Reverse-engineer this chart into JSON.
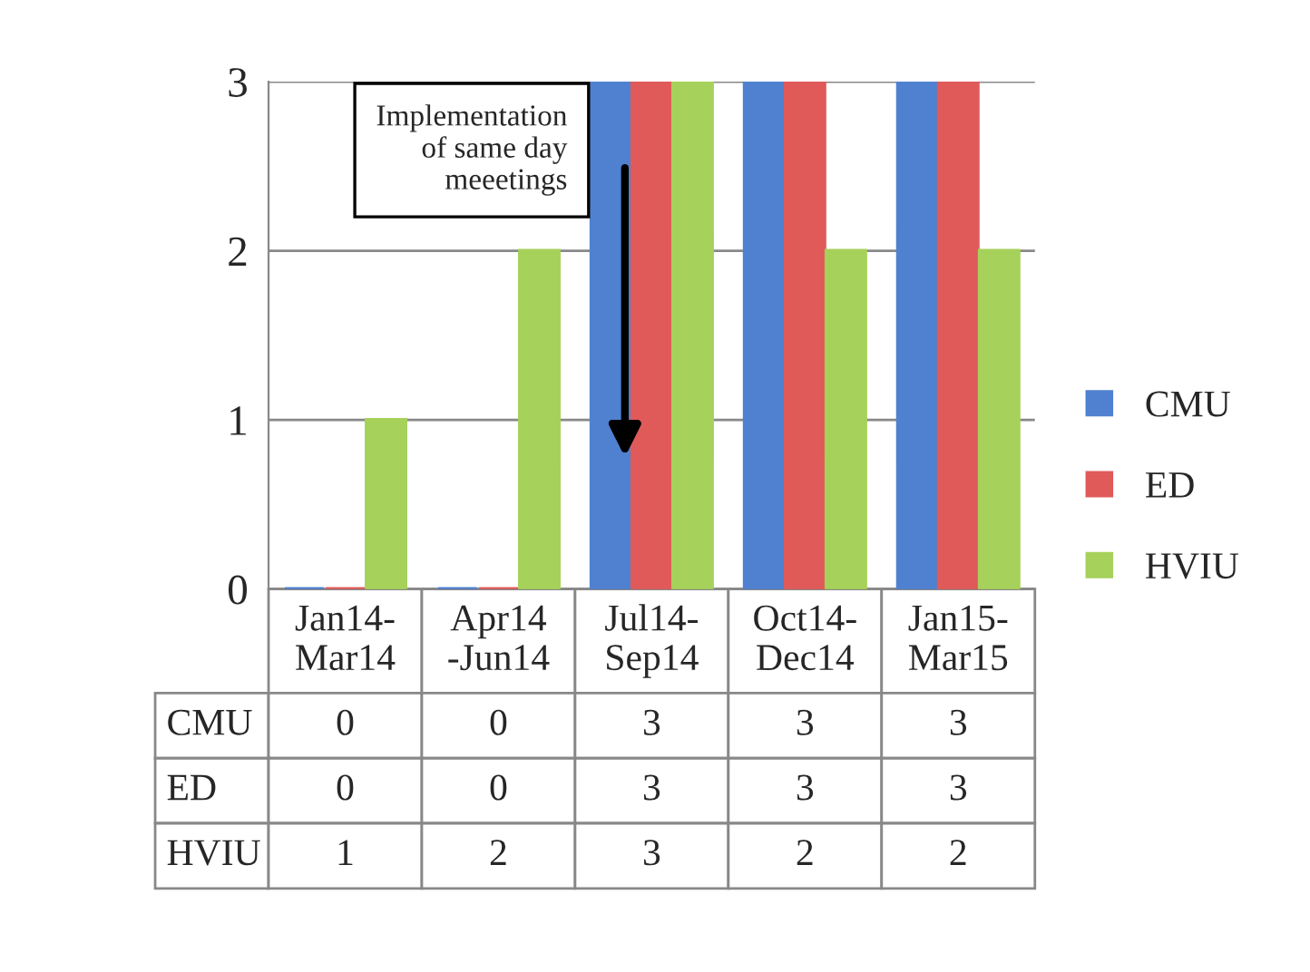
{
  "chart_data": {
    "type": "bar",
    "categories": [
      "Jan14-\nMar14",
      "Apr14\n-Jun14",
      "Jul14-\nSep14",
      "Oct14-\nDec14",
      "Jan15-\nMar15"
    ],
    "series": [
      {
        "name": "CMU",
        "color": "#4f81d0",
        "values": [
          0,
          0,
          3,
          3,
          3
        ]
      },
      {
        "name": "ED",
        "color": "#e05a5a",
        "values": [
          0,
          0,
          3,
          3,
          3
        ]
      },
      {
        "name": "HVIU",
        "color": "#a6d15a",
        "values": [
          1,
          2,
          3,
          2,
          2
        ]
      }
    ],
    "ylim": [
      0,
      3
    ],
    "yticks": [
      0,
      1,
      2,
      3
    ],
    "grid": "y",
    "legend": "right",
    "data_labels": true,
    "annotations": [
      "Implementation\nof same day\nmeeetings"
    ]
  }
}
